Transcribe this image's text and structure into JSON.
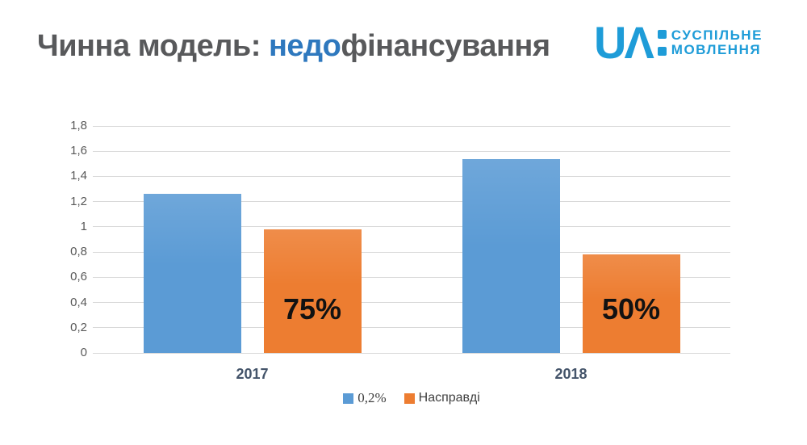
{
  "slide": {
    "title": {
      "prefix": "Чинна модель: ",
      "highlight": "недо",
      "suffix": "фінансування",
      "text_color": "#58595B",
      "highlight_color": "#2E78BE"
    },
    "logo": {
      "wordmark": "UΛ",
      "line1": "СУСПІЛЬНЕ",
      "line2": "МОВЛЕННЯ",
      "color": "#1E9CD8"
    }
  },
  "chart_data": {
    "type": "bar",
    "title": "",
    "xlabel": "",
    "ylabel": "",
    "categories": [
      "2017",
      "2018"
    ],
    "series": [
      {
        "name": "0,2%",
        "color": "#5B9BD5",
        "values": [
          1.26,
          1.54
        ]
      },
      {
        "name": "Насправді",
        "color": "#ED7D31",
        "values": [
          0.98,
          0.78
        ],
        "bar_labels": [
          "75%",
          "50%"
        ]
      }
    ],
    "ylim": [
      0,
      1.8
    ],
    "ytick_labels": [
      "0",
      "0,2",
      "0,4",
      "0,6",
      "0,8",
      "1",
      "1,2",
      "1,4",
      "1,6",
      "1,8"
    ],
    "grid": true,
    "legend_position": "bottom",
    "bar_label_color": "#121212",
    "gridline_color": "#D9D9D9",
    "ytick_color": "#595959",
    "xtick_color": "#44546A"
  }
}
